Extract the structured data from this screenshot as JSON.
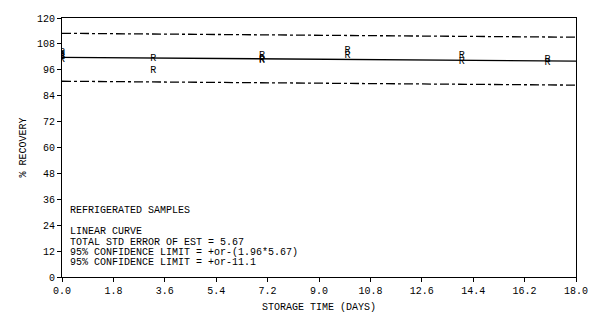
{
  "chart_data": {
    "type": "scatter",
    "x_label": "STORAGE TIME (DAYS)",
    "y_label": "% RECOVERY",
    "annotations": [
      "REFRIGERATED SAMPLES",
      "LINEAR CURVE",
      "TOTAL STD ERROR OF EST = 5.67",
      "95% CONFIDENCE LIMIT = +or-(1.96*5.67)",
      "95% CONFIDENCE LIMIT = +or-11.1"
    ],
    "xlim": [
      0,
      18
    ],
    "xticks": [
      {
        "value": 0,
        "label": "0.0"
      },
      1.8,
      3.6,
      5.4,
      7.2,
      {
        "value": 9,
        "label": "9.0"
      },
      10.8,
      12.6,
      14.4,
      16.2,
      {
        "value": 18,
        "label": "18.0"
      }
    ],
    "ylim": [
      0,
      120
    ],
    "yticks": [
      0,
      12,
      24,
      36,
      48,
      60,
      72,
      84,
      96,
      108,
      120
    ],
    "grid": false,
    "series": [
      {
        "type": "scatter",
        "marker": "R",
        "color": "#000000",
        "x": [
          0,
          0,
          0,
          0,
          3.2,
          3.2,
          7,
          7,
          7,
          10,
          10,
          14,
          14,
          17,
          17
        ],
        "values": [
          101,
          102,
          103,
          104,
          101.4,
          95.5,
          102.7,
          101,
          100.5,
          105,
          102.7,
          102.7,
          100,
          101,
          99.5
        ]
      },
      {
        "type": "line",
        "line_style": "solid",
        "color": "#000000",
        "x": [
          0,
          18
        ],
        "values": [
          101.8,
          100.0
        ]
      },
      {
        "type": "line",
        "line_style": "dashdot",
        "color": "#000000",
        "x": [
          0,
          18
        ],
        "values": [
          112.9,
          111.1
        ]
      },
      {
        "type": "line",
        "line_style": "dashdot",
        "color": "#000000",
        "x": [
          0,
          18
        ],
        "values": [
          90.7,
          88.9
        ]
      }
    ]
  }
}
